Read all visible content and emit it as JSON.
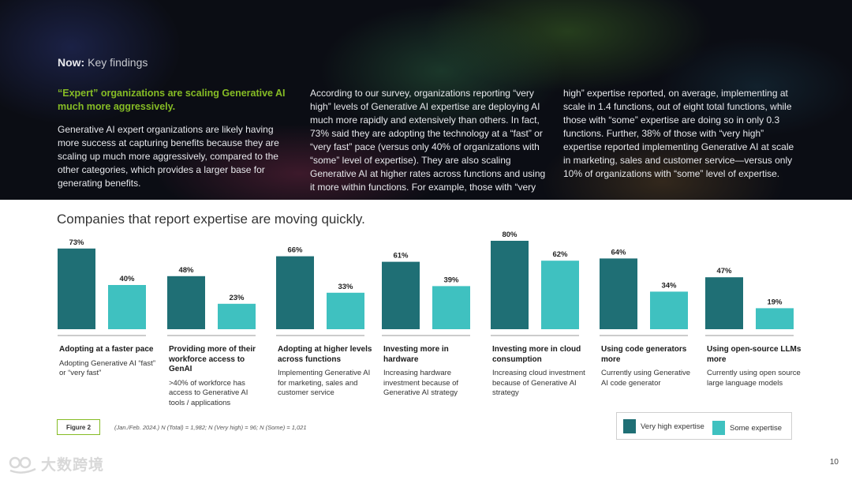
{
  "header": {
    "title_bold": "Now:",
    "title_rest": " Key findings",
    "lead": "“Expert” organizations are scaling Generative AI much more aggressively.",
    "col1": "Generative AI expert organizations are likely having more success at capturing benefits because they are scaling up much more aggressively, compared to the other categories, which provides a larger base for generating benefits.",
    "col2": "According to our survey, organizations reporting “very high” levels of Generative AI expertise are deploying AI much more rapidly and extensively than others. In fact, 73% said they are adopting the technology at a “fast” or “very fast” pace (versus only 40% of organizations with “some” level of expertise). They are also scaling Generative AI at higher rates across functions and using it more within functions. For example, those with “very",
    "col3": "high” expertise reported, on average, implementing at scale in 1.4 functions, out of eight total functions, while those with “some” expertise are doing so in only 0.3 functions. Further, 38% of those with “very high” expertise reported implementing Generative AI at scale in marketing, sales and customer service—versus only 10% of organizations with “some” level of expertise."
  },
  "chart_data": {
    "type": "bar",
    "title": "Companies that report expertise are moving quickly.",
    "ylim": [
      0,
      100
    ],
    "categories": [
      "Adopting at a faster pace",
      "Providing more of their workforce access to GenAI",
      "Adopting at higher levels across functions",
      "Investing more in hardware",
      "Investing more in cloud consumption",
      "Using code generators more",
      "Using open-source LLMs more"
    ],
    "descriptions": [
      "Adopting Generative AI “fast” or “very fast”",
      ">40% of workforce has access to Generative AI tools / applications",
      "Implementing Generative AI for marketing, sales and customer service",
      "Increasing hardware investment because of Generative AI strategy",
      "Increasing cloud investment because of Generative AI strategy",
      "Currently using Generative AI code generator",
      "Currently using open source large language models"
    ],
    "series": [
      {
        "name": "Very high expertise",
        "color": "#1f6f75",
        "values": [
          73,
          48,
          66,
          61,
          80,
          64,
          47
        ],
        "labels": [
          "73%",
          "48%",
          "66%",
          "61%",
          "80%",
          "64%",
          "47%"
        ]
      },
      {
        "name": "Some expertise",
        "color": "#3fc1c0",
        "values": [
          40,
          23,
          33,
          39,
          62,
          34,
          19
        ],
        "labels": [
          "40%",
          "23%",
          "33%",
          "39%",
          "62%",
          "34%",
          "19%"
        ]
      }
    ]
  },
  "footer": {
    "figure_label": "Figure 2",
    "note": "(Jan./Feb. 2024.) N (Total) = 1,982; N (Very high) = 96; N (Some) = 1,021",
    "page_number": "10",
    "watermark": "大数跨境"
  }
}
